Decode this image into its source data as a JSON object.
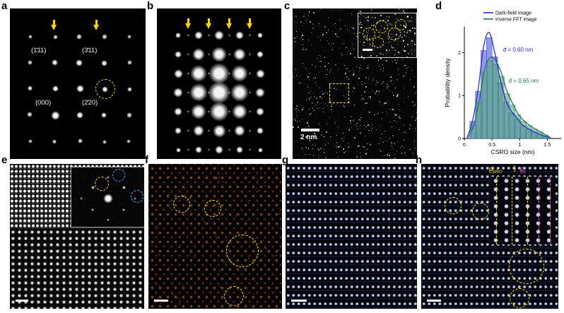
{
  "figure": {
    "panels": {
      "a": {
        "label": "a",
        "annotations": {
          "hkl_111": "(1̄11)",
          "hkl_311": "(3̄11)",
          "hkl_000": "(000)",
          "hkl_220": "(2̄20)"
        }
      },
      "b": {
        "label": "b"
      },
      "c": {
        "label": "c",
        "scale_bar": "2 nm"
      },
      "d": {
        "label": "d"
      },
      "e": {
        "label": "e"
      },
      "f": {
        "label": "f"
      },
      "g": {
        "label": "g"
      },
      "h": {
        "label": "h",
        "inset": {
          "d_csro_main": "d",
          "d_csro_sub": "CSRO",
          "brace": "}",
          "d_fcc_main": "d",
          "d_fcc_sub": "fcc"
        }
      }
    },
    "colors": {
      "annotation_yellow": "#ffe400",
      "arrow_yellow": "#ffd400",
      "circle_blue": "#35b5ff",
      "d_fcc_pink": "#ff64d2",
      "scale_bar_white": "#ffffff"
    }
  },
  "chart_data": {
    "type": "bar",
    "subtype": "histogram_with_density_curves",
    "title": "",
    "xlabel": "CSRO size (nm)",
    "ylabel": "Probability density",
    "xlim": [
      0,
      1.75
    ],
    "ylim": [
      0,
      2.6
    ],
    "xticks": [
      0,
      0.5,
      1,
      1.5
    ],
    "yticks": [
      0,
      1,
      2
    ],
    "bin_width": 0.1,
    "grid": false,
    "legend_position": "top-right",
    "series": [
      {
        "name": "Dark-field image",
        "bar_color": "#6674d8",
        "line_color": "#2b2bd5",
        "bins_start": 0.1,
        "values": [
          0.4,
          1.1,
          2.05,
          2.35,
          1.9,
          1.3,
          0.85,
          0.6,
          0.45,
          0.3,
          0.22,
          0.15,
          0.1,
          0.05
        ],
        "mean_label_d": "d̄",
        "mean_label_rest": " = 0.60 nm",
        "mean": 0.6,
        "label_x": 0.7,
        "label_y": 2.02
      },
      {
        "name": "Inverse FFT image",
        "bar_color": "#58a882",
        "line_color": "#1d7a4f",
        "bins_start": 0.12,
        "values": [
          0.3,
          0.85,
          1.55,
          1.8,
          1.72,
          1.45,
          1.05,
          0.78,
          0.55,
          0.4,
          0.3,
          0.22,
          0.15,
          0.08
        ],
        "mean_label_d": "d̄",
        "mean_label_rest": " = 0.65 nm",
        "mean": 0.65,
        "label_x": 0.8,
        "label_y": 1.3
      }
    ]
  }
}
